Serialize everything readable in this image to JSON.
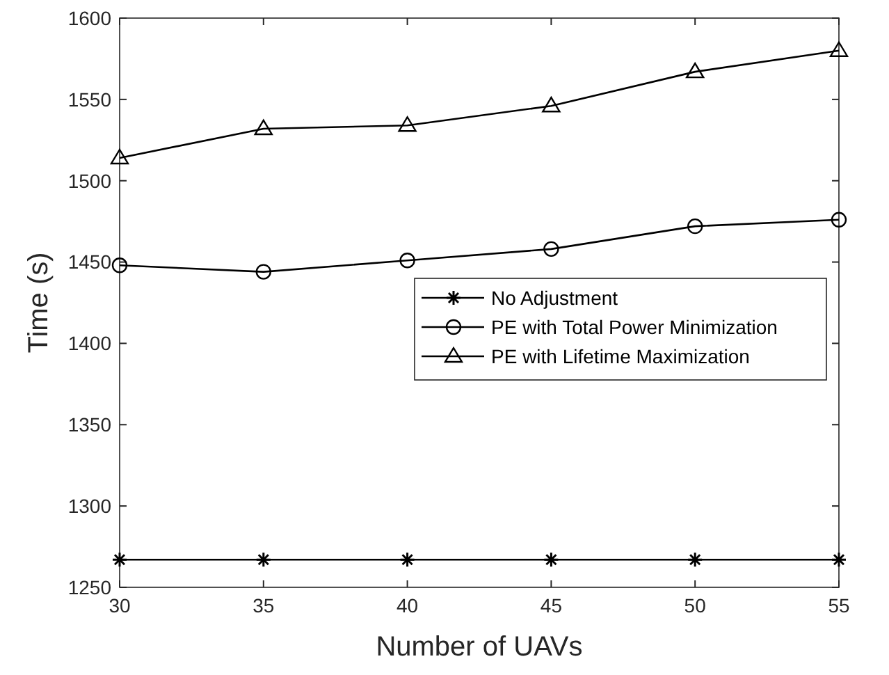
{
  "chart_data": {
    "type": "line",
    "xlabel": "Number of UAVs",
    "ylabel": "Time (s)",
    "x": [
      30,
      35,
      40,
      45,
      50,
      55
    ],
    "series": [
      {
        "name": "No Adjustment",
        "color": "#000000",
        "marker": "cross",
        "values": [
          1267,
          1267,
          1267,
          1267,
          1267,
          1267
        ]
      },
      {
        "name": "PE with Total Power Minimization",
        "color": "#000000",
        "marker": "circle",
        "values": [
          1448,
          1444,
          1451,
          1458,
          1472,
          1476
        ]
      },
      {
        "name": "PE with Lifetime Maximization",
        "color": "#000000",
        "marker": "triangle",
        "values": [
          1514,
          1532,
          1534,
          1546,
          1567,
          1580
        ]
      }
    ],
    "xlim": [
      30,
      55
    ],
    "xticks": [
      30,
      35,
      40,
      45,
      50,
      55
    ],
    "ylim": [
      1250,
      1600
    ],
    "yticks": [
      1250,
      1300,
      1350,
      1400,
      1450,
      1500,
      1550,
      1600
    ],
    "grid": false,
    "legend": "right",
    "line_style": "solid"
  }
}
